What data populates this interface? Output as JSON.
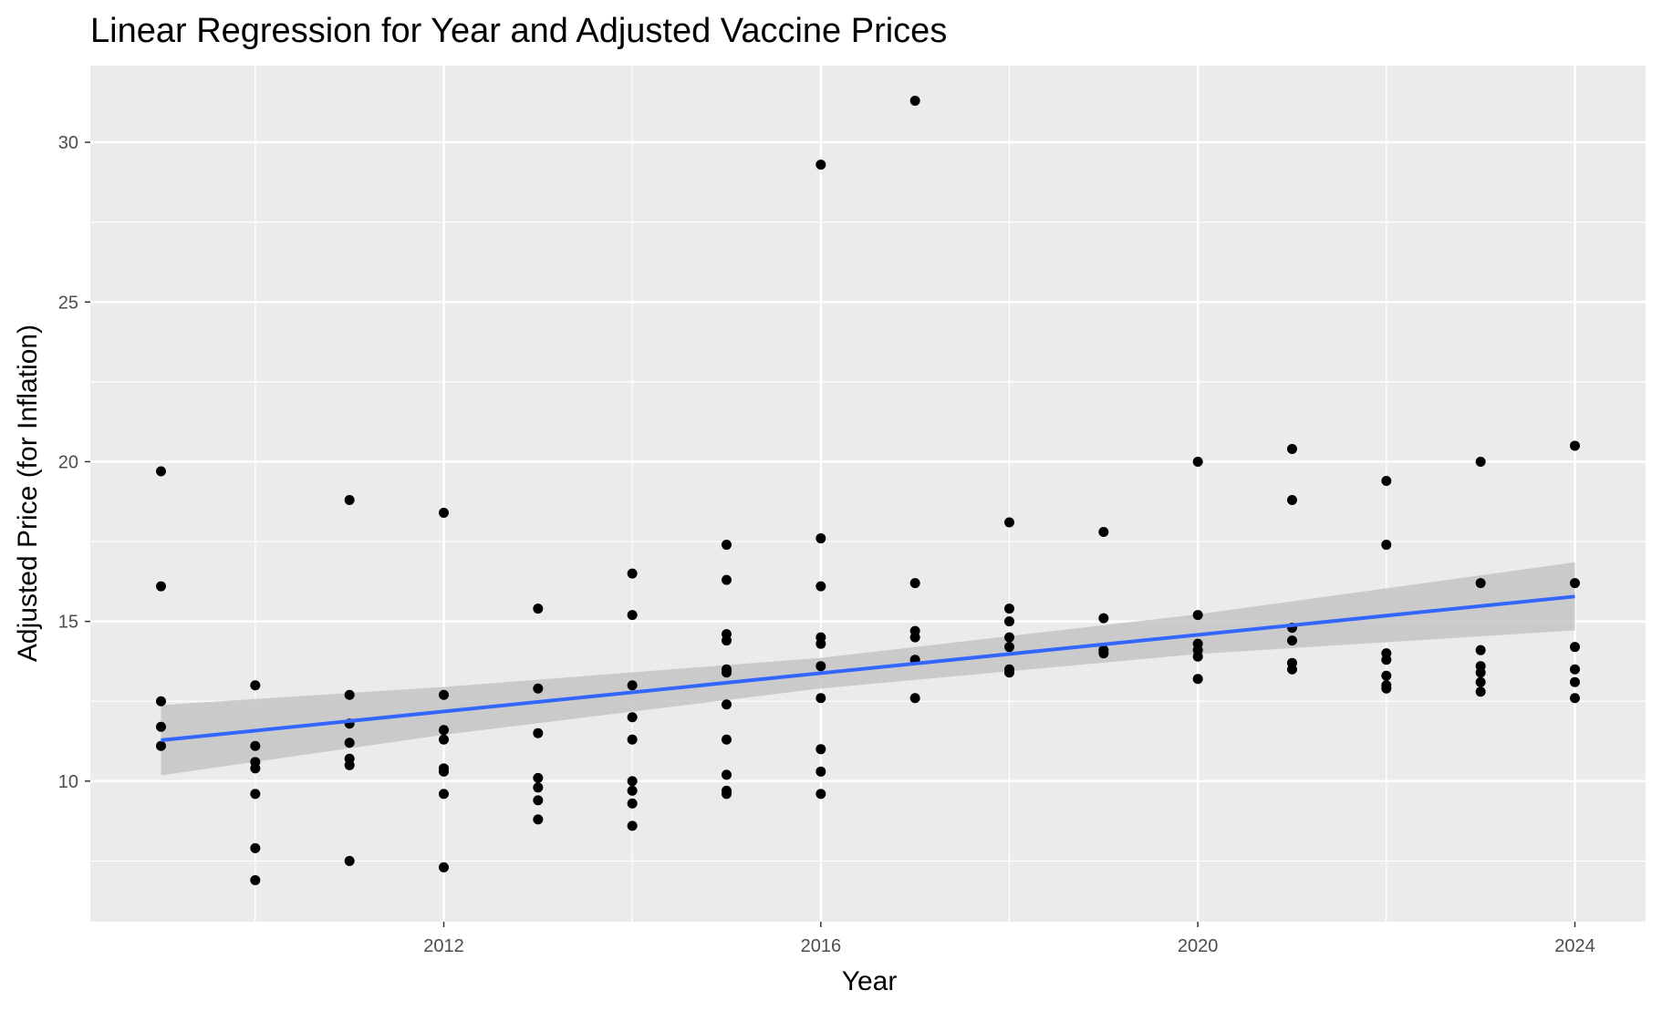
{
  "chart_data": {
    "type": "scatter",
    "title": "Linear Regression for Year and Adjusted Vaccine Prices",
    "xlabel": "Year",
    "ylabel": "Adjusted Price (for Inflation)",
    "xlim": [
      2008.25,
      2024.75
    ],
    "ylim": [
      5.6,
      32.4
    ],
    "x_ticks": [
      2012,
      2016,
      2020,
      2024
    ],
    "y_ticks": [
      10,
      15,
      20,
      25,
      30
    ],
    "grid": true,
    "colors": {
      "panel": "#ebebeb",
      "grid": "#ffffff",
      "points": "#000000",
      "fit_line": "#3366ff",
      "confidence_band": "#c4c4c4"
    },
    "fit_line": {
      "x": [
        2009,
        2024
      ],
      "y": [
        11.28,
        15.78
      ]
    },
    "confidence_band": {
      "x": [
        2009,
        2012,
        2016,
        2020,
        2024
      ],
      "lower": [
        10.18,
        11.45,
        12.9,
        13.98,
        14.72
      ],
      "upper": [
        12.38,
        12.95,
        13.86,
        15.22,
        16.85
      ]
    },
    "points": [
      {
        "x": 2009,
        "y": 19.7
      },
      {
        "x": 2009,
        "y": 16.1
      },
      {
        "x": 2009,
        "y": 12.5
      },
      {
        "x": 2009,
        "y": 11.7
      },
      {
        "x": 2009,
        "y": 11.1
      },
      {
        "x": 2010,
        "y": 13.0
      },
      {
        "x": 2010,
        "y": 11.1
      },
      {
        "x": 2010,
        "y": 10.6
      },
      {
        "x": 2010,
        "y": 10.4
      },
      {
        "x": 2010,
        "y": 9.6
      },
      {
        "x": 2010,
        "y": 7.9
      },
      {
        "x": 2010,
        "y": 6.9
      },
      {
        "x": 2011,
        "y": 18.8
      },
      {
        "x": 2011,
        "y": 12.7
      },
      {
        "x": 2011,
        "y": 11.8
      },
      {
        "x": 2011,
        "y": 11.2
      },
      {
        "x": 2011,
        "y": 10.7
      },
      {
        "x": 2011,
        "y": 10.5
      },
      {
        "x": 2011,
        "y": 7.5
      },
      {
        "x": 2012,
        "y": 18.4
      },
      {
        "x": 2012,
        "y": 12.7
      },
      {
        "x": 2012,
        "y": 11.6
      },
      {
        "x": 2012,
        "y": 11.3
      },
      {
        "x": 2012,
        "y": 10.4
      },
      {
        "x": 2012,
        "y": 10.3
      },
      {
        "x": 2012,
        "y": 9.6
      },
      {
        "x": 2012,
        "y": 7.3
      },
      {
        "x": 2013,
        "y": 15.4
      },
      {
        "x": 2013,
        "y": 12.9
      },
      {
        "x": 2013,
        "y": 11.5
      },
      {
        "x": 2013,
        "y": 10.1
      },
      {
        "x": 2013,
        "y": 9.8
      },
      {
        "x": 2013,
        "y": 9.4
      },
      {
        "x": 2013,
        "y": 8.8
      },
      {
        "x": 2014,
        "y": 16.5
      },
      {
        "x": 2014,
        "y": 15.2
      },
      {
        "x": 2014,
        "y": 13.0
      },
      {
        "x": 2014,
        "y": 12.0
      },
      {
        "x": 2014,
        "y": 11.3
      },
      {
        "x": 2014,
        "y": 10.0
      },
      {
        "x": 2014,
        "y": 9.7
      },
      {
        "x": 2014,
        "y": 9.3
      },
      {
        "x": 2014,
        "y": 8.6
      },
      {
        "x": 2015,
        "y": 17.4
      },
      {
        "x": 2015,
        "y": 16.3
      },
      {
        "x": 2015,
        "y": 14.6
      },
      {
        "x": 2015,
        "y": 14.4
      },
      {
        "x": 2015,
        "y": 13.5
      },
      {
        "x": 2015,
        "y": 13.4
      },
      {
        "x": 2015,
        "y": 12.4
      },
      {
        "x": 2015,
        "y": 11.3
      },
      {
        "x": 2015,
        "y": 10.2
      },
      {
        "x": 2015,
        "y": 9.7
      },
      {
        "x": 2015,
        "y": 9.6
      },
      {
        "x": 2016,
        "y": 29.3
      },
      {
        "x": 2016,
        "y": 17.6
      },
      {
        "x": 2016,
        "y": 16.1
      },
      {
        "x": 2016,
        "y": 14.5
      },
      {
        "x": 2016,
        "y": 14.3
      },
      {
        "x": 2016,
        "y": 13.6
      },
      {
        "x": 2016,
        "y": 12.6
      },
      {
        "x": 2016,
        "y": 11.0
      },
      {
        "x": 2016,
        "y": 10.3
      },
      {
        "x": 2016,
        "y": 9.6
      },
      {
        "x": 2017,
        "y": 31.3
      },
      {
        "x": 2017,
        "y": 16.2
      },
      {
        "x": 2017,
        "y": 14.7
      },
      {
        "x": 2017,
        "y": 14.5
      },
      {
        "x": 2017,
        "y": 13.8
      },
      {
        "x": 2017,
        "y": 12.6
      },
      {
        "x": 2018,
        "y": 18.1
      },
      {
        "x": 2018,
        "y": 15.4
      },
      {
        "x": 2018,
        "y": 15.0
      },
      {
        "x": 2018,
        "y": 14.5
      },
      {
        "x": 2018,
        "y": 14.2
      },
      {
        "x": 2018,
        "y": 13.5
      },
      {
        "x": 2018,
        "y": 13.4
      },
      {
        "x": 2019,
        "y": 17.8
      },
      {
        "x": 2019,
        "y": 15.1
      },
      {
        "x": 2019,
        "y": 14.1
      },
      {
        "x": 2019,
        "y": 14.0
      },
      {
        "x": 2020,
        "y": 20.0
      },
      {
        "x": 2020,
        "y": 15.2
      },
      {
        "x": 2020,
        "y": 14.3
      },
      {
        "x": 2020,
        "y": 14.1
      },
      {
        "x": 2020,
        "y": 13.9
      },
      {
        "x": 2020,
        "y": 13.2
      },
      {
        "x": 2021,
        "y": 20.4
      },
      {
        "x": 2021,
        "y": 18.8
      },
      {
        "x": 2021,
        "y": 14.8
      },
      {
        "x": 2021,
        "y": 14.4
      },
      {
        "x": 2021,
        "y": 13.7
      },
      {
        "x": 2021,
        "y": 13.5
      },
      {
        "x": 2022,
        "y": 19.4
      },
      {
        "x": 2022,
        "y": 17.4
      },
      {
        "x": 2022,
        "y": 14.0
      },
      {
        "x": 2022,
        "y": 13.8
      },
      {
        "x": 2022,
        "y": 13.3
      },
      {
        "x": 2022,
        "y": 13.0
      },
      {
        "x": 2022,
        "y": 12.9
      },
      {
        "x": 2023,
        "y": 20.0
      },
      {
        "x": 2023,
        "y": 16.2
      },
      {
        "x": 2023,
        "y": 14.1
      },
      {
        "x": 2023,
        "y": 13.6
      },
      {
        "x": 2023,
        "y": 13.4
      },
      {
        "x": 2023,
        "y": 13.1
      },
      {
        "x": 2023,
        "y": 12.8
      },
      {
        "x": 2024,
        "y": 20.5
      },
      {
        "x": 2024,
        "y": 16.2
      },
      {
        "x": 2024,
        "y": 14.2
      },
      {
        "x": 2024,
        "y": 13.5
      },
      {
        "x": 2024,
        "y": 13.1
      },
      {
        "x": 2024,
        "y": 12.6
      }
    ]
  }
}
